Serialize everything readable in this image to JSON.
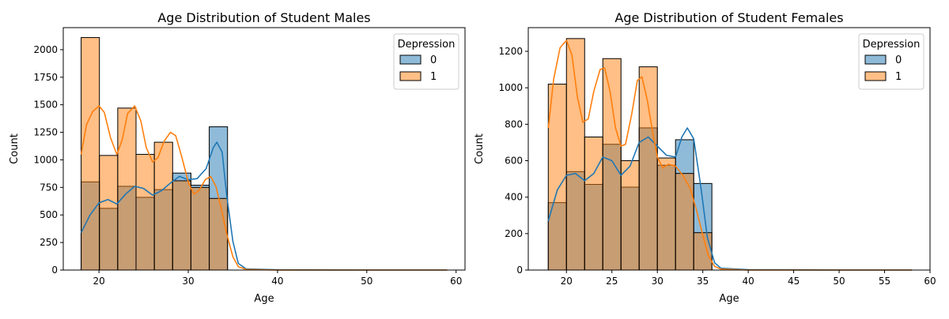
{
  "colors": {
    "series0": "#1f77b4",
    "series1": "#ff7f0e",
    "bar_alpha": 0.5
  },
  "chart_data": [
    {
      "type": "bar",
      "subtype": "histogram-overlay-with-kde",
      "title": "Age Distribution of Student Males",
      "xlabel": "Age",
      "ylabel": "Count",
      "xlim": [
        16.0,
        61.0
      ],
      "ylim": [
        0,
        2200
      ],
      "xticks": [
        20,
        30,
        40,
        50,
        60
      ],
      "yticks": [
        0,
        250,
        500,
        750,
        1000,
        1250,
        1500,
        1750,
        2000
      ],
      "legend": {
        "title": "Depression",
        "entries": [
          "0",
          "1"
        ],
        "placement": "top-right"
      },
      "bin_edges": [
        18.0,
        20.05,
        22.1,
        24.15,
        26.2,
        28.25,
        30.3,
        32.35,
        34.4
      ],
      "series": [
        {
          "name": "0",
          "values": [
            800,
            560,
            760,
            660,
            730,
            880,
            770,
            1300
          ]
        },
        {
          "name": "1",
          "values": [
            2110,
            1040,
            1470,
            1050,
            1160,
            810,
            750,
            650
          ]
        }
      ],
      "kde": [
        {
          "name": "0",
          "points": [
            [
              18,
              340
            ],
            [
              19,
              500
            ],
            [
              20,
              610
            ],
            [
              21,
              640
            ],
            [
              22,
              600
            ],
            [
              23,
              690
            ],
            [
              24,
              760
            ],
            [
              25,
              740
            ],
            [
              26,
              680
            ],
            [
              27,
              720
            ],
            [
              28,
              790
            ],
            [
              29,
              850
            ],
            [
              30,
              820
            ],
            [
              31,
              830
            ],
            [
              32,
              920
            ],
            [
              32.8,
              1110
            ],
            [
              33.2,
              1160
            ],
            [
              33.8,
              1070
            ],
            [
              34.3,
              680
            ],
            [
              35,
              260
            ],
            [
              35.6,
              60
            ],
            [
              36.5,
              10
            ],
            [
              40,
              2
            ],
            [
              50,
              0
            ],
            [
              59,
              0
            ]
          ]
        },
        {
          "name": "1",
          "values_note": "",
          "points": [
            [
              18,
              1050
            ],
            [
              18.6,
              1320
            ],
            [
              19.3,
              1440
            ],
            [
              20,
              1490
            ],
            [
              20.6,
              1430
            ],
            [
              21.3,
              1200
            ],
            [
              22,
              1050
            ],
            [
              22.6,
              1180
            ],
            [
              23.2,
              1420
            ],
            [
              24,
              1490
            ],
            [
              24.7,
              1350
            ],
            [
              25.3,
              1110
            ],
            [
              26,
              980
            ],
            [
              26.6,
              1020
            ],
            [
              27.3,
              1170
            ],
            [
              28,
              1250
            ],
            [
              28.6,
              1220
            ],
            [
              29.3,
              1020
            ],
            [
              30,
              800
            ],
            [
              30.6,
              690
            ],
            [
              31.2,
              720
            ],
            [
              31.9,
              820
            ],
            [
              32.5,
              850
            ],
            [
              33.1,
              760
            ],
            [
              33.7,
              560
            ],
            [
              34.3,
              330
            ],
            [
              35,
              120
            ],
            [
              35.6,
              30
            ],
            [
              36.5,
              5
            ],
            [
              40,
              0
            ],
            [
              50,
              0
            ],
            [
              59,
              0
            ]
          ]
        }
      ]
    },
    {
      "type": "bar",
      "subtype": "histogram-overlay-with-kde",
      "title": "Age Distribution of Student Females",
      "xlabel": "Age",
      "ylabel": "Count",
      "xlim": [
        15.8,
        60.0
      ],
      "ylim": [
        0,
        1330
      ],
      "xticks": [
        20,
        25,
        30,
        35,
        40,
        45,
        50,
        55,
        60
      ],
      "yticks": [
        0,
        200,
        400,
        600,
        800,
        1000,
        1200
      ],
      "legend": {
        "title": "Depression",
        "entries": [
          "0",
          "1"
        ],
        "placement": "top-right"
      },
      "bin_edges": [
        18.0,
        20.0,
        22.0,
        24.0,
        26.0,
        28.0,
        30.0,
        32.0,
        34.0,
        36.0
      ],
      "series": [
        {
          "name": "0",
          "values": [
            370,
            540,
            470,
            690,
            455,
            780,
            575,
            715,
            475
          ]
        },
        {
          "name": "1",
          "values": [
            1020,
            1270,
            730,
            1160,
            600,
            1115,
            615,
            530,
            205
          ]
        }
      ],
      "kde": [
        {
          "name": "0",
          "points": [
            [
              18,
              270
            ],
            [
              19,
              440
            ],
            [
              20,
              520
            ],
            [
              21,
              530
            ],
            [
              22,
              490
            ],
            [
              23,
              530
            ],
            [
              24,
              620
            ],
            [
              25,
              600
            ],
            [
              26,
              520
            ],
            [
              27,
              570
            ],
            [
              28,
              700
            ],
            [
              29,
              730
            ],
            [
              30,
              680
            ],
            [
              31,
              630
            ],
            [
              32,
              620
            ],
            [
              32.7,
              730
            ],
            [
              33.3,
              780
            ],
            [
              34,
              720
            ],
            [
              34.8,
              450
            ],
            [
              35.5,
              180
            ],
            [
              36.3,
              40
            ],
            [
              37,
              10
            ],
            [
              40,
              2
            ],
            [
              50,
              0
            ],
            [
              58,
              0
            ]
          ]
        },
        {
          "name": "1",
          "points": [
            [
              18,
              780
            ],
            [
              18.6,
              1050
            ],
            [
              19.3,
              1220
            ],
            [
              20,
              1260
            ],
            [
              20.6,
              1180
            ],
            [
              21.2,
              950
            ],
            [
              21.8,
              810
            ],
            [
              22.4,
              830
            ],
            [
              23,
              980
            ],
            [
              23.7,
              1100
            ],
            [
              24.2,
              1110
            ],
            [
              24.8,
              980
            ],
            [
              25.4,
              780
            ],
            [
              26,
              680
            ],
            [
              26.5,
              690
            ],
            [
              27.2,
              860
            ],
            [
              27.8,
              1040
            ],
            [
              28.3,
              1060
            ],
            [
              28.9,
              930
            ],
            [
              29.5,
              750
            ],
            [
              30,
              620
            ],
            [
              30.6,
              560
            ],
            [
              31.2,
              580
            ],
            [
              32,
              570
            ],
            [
              32.8,
              520
            ],
            [
              33.6,
              450
            ],
            [
              34.3,
              330
            ],
            [
              35,
              190
            ],
            [
              35.6,
              80
            ],
            [
              36.3,
              20
            ],
            [
              37,
              5
            ],
            [
              40,
              0
            ],
            [
              58,
              0
            ]
          ]
        }
      ]
    }
  ]
}
